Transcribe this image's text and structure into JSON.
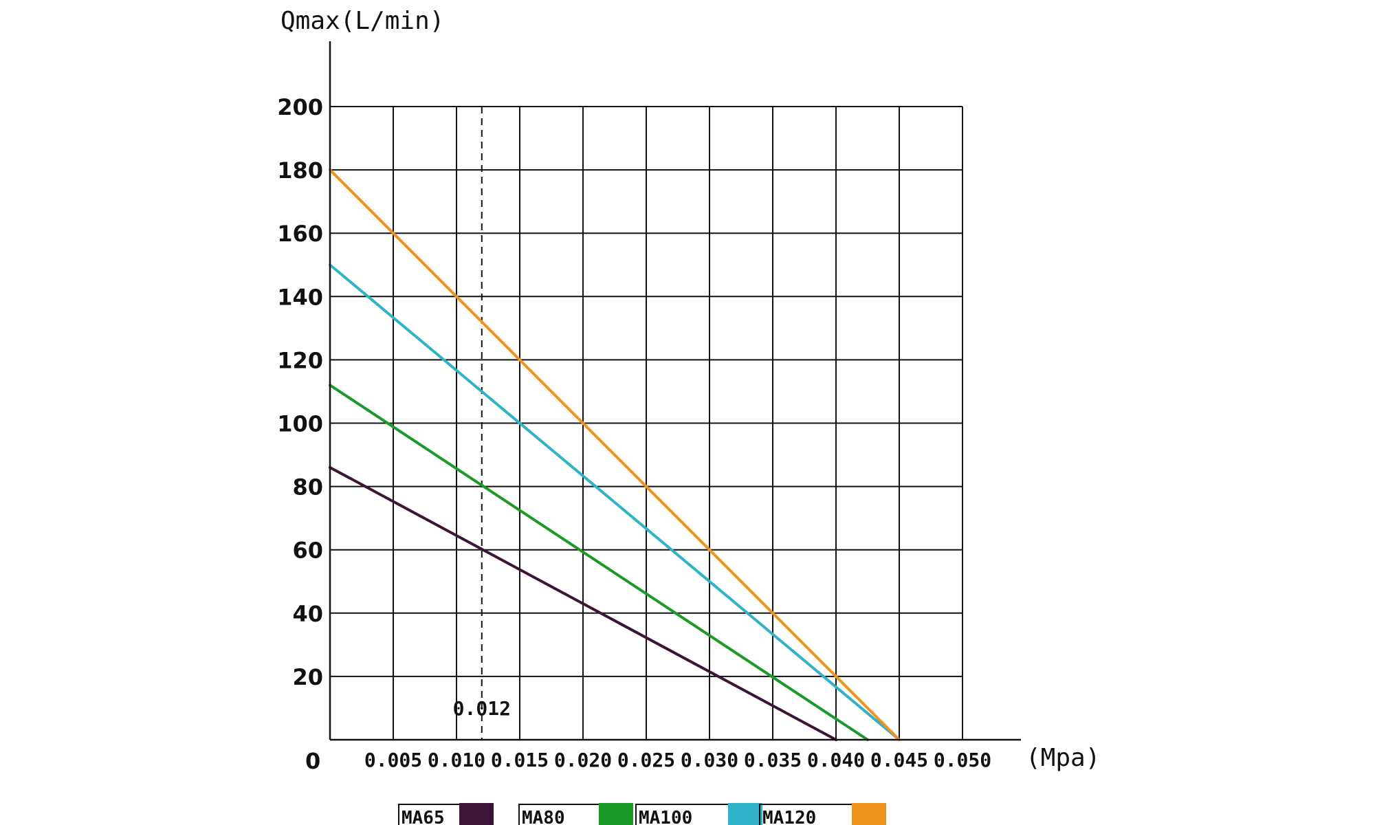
{
  "chart_data": {
    "type": "line",
    "title": "",
    "ylabel": "Qmax(L/min)",
    "xlabel": "(Mpa)",
    "origin_label": "0",
    "xlim": [
      0,
      0.05
    ],
    "ylim": [
      0,
      200
    ],
    "x_ticks": [
      0.005,
      0.01,
      0.015,
      0.02,
      0.025,
      0.03,
      0.035,
      0.04,
      0.045,
      0.05
    ],
    "x_tick_labels": [
      "0.005",
      "0.010",
      "0.015",
      "0.020",
      "0.025",
      "0.030",
      "0.035",
      "0.040",
      "0.045",
      "0.050"
    ],
    "y_ticks": [
      20,
      40,
      60,
      80,
      100,
      120,
      140,
      160,
      180,
      200
    ],
    "y_tick_labels": [
      "20",
      "40",
      "60",
      "80",
      "100",
      "120",
      "140",
      "160",
      "180",
      "200"
    ],
    "grid": true,
    "reference_lines": [
      {
        "x": 0.01,
        "style": "dashed"
      },
      {
        "x": 0.012,
        "style": "dashed",
        "label": "0.012"
      },
      {
        "x": 0.015,
        "style": "dashed"
      }
    ],
    "legend_position": "bottom",
    "series": [
      {
        "name": "MA65",
        "color": "#3d1436",
        "x": [
          0,
          0.04
        ],
        "y": [
          86,
          0
        ]
      },
      {
        "name": "MA80",
        "color": "#1a9a28",
        "x": [
          0,
          0.0425
        ],
        "y": [
          112,
          0
        ]
      },
      {
        "name": "MA100",
        "color": "#2eb3c8",
        "x": [
          0,
          0.045
        ],
        "y": [
          150,
          0
        ]
      },
      {
        "name": "MA120",
        "color": "#f0921e",
        "x": [
          0,
          0.045
        ],
        "y": [
          180,
          0
        ]
      }
    ]
  }
}
